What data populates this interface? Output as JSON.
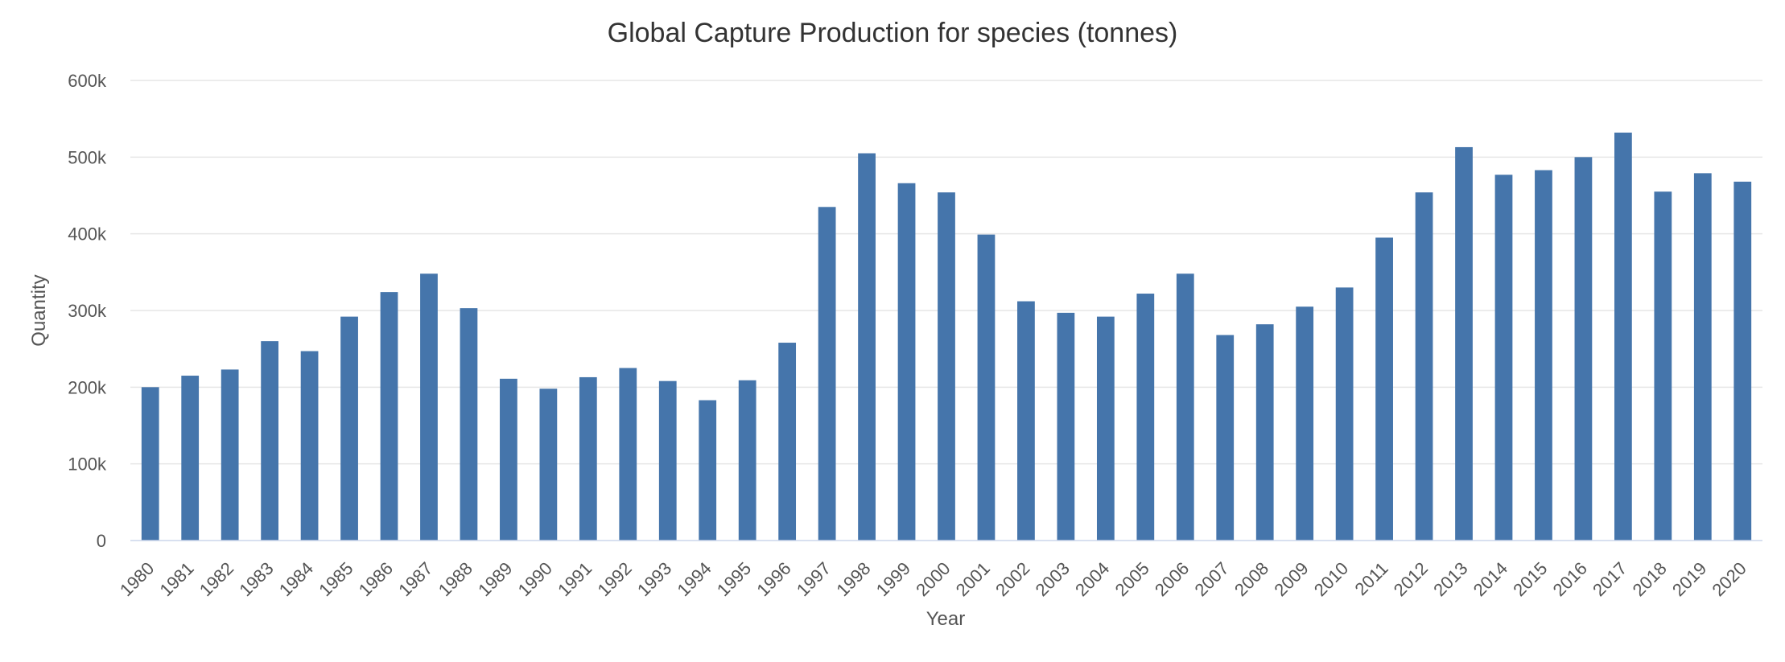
{
  "chart_data": {
    "type": "bar",
    "title": "Global Capture Production for species (tonnes)",
    "xlabel": "Year",
    "ylabel": "Quantity",
    "ylim": [
      0,
      600000
    ],
    "yticks": [
      {
        "value": 0,
        "label": "0"
      },
      {
        "value": 100000,
        "label": "100k"
      },
      {
        "value": 200000,
        "label": "200k"
      },
      {
        "value": 300000,
        "label": "300k"
      },
      {
        "value": 400000,
        "label": "400k"
      },
      {
        "value": 500000,
        "label": "500k"
      },
      {
        "value": 600000,
        "label": "600k"
      }
    ],
    "grid": true,
    "legend": "none",
    "bar_color": "#4575ab",
    "categories": [
      "1980",
      "1981",
      "1982",
      "1983",
      "1984",
      "1985",
      "1986",
      "1987",
      "1988",
      "1989",
      "1990",
      "1991",
      "1992",
      "1993",
      "1994",
      "1995",
      "1996",
      "1997",
      "1998",
      "1999",
      "2000",
      "2001",
      "2002",
      "2003",
      "2004",
      "2005",
      "2006",
      "2007",
      "2008",
      "2009",
      "2010",
      "2011",
      "2012",
      "2013",
      "2014",
      "2015",
      "2016",
      "2017",
      "2018",
      "2019",
      "2020"
    ],
    "values": [
      200000,
      215000,
      223000,
      260000,
      247000,
      292000,
      324000,
      348000,
      303000,
      211000,
      198000,
      213000,
      225000,
      208000,
      183000,
      209000,
      258000,
      435000,
      505000,
      466000,
      454000,
      399000,
      312000,
      297000,
      292000,
      322000,
      348000,
      268000,
      282000,
      305000,
      330000,
      395000,
      454000,
      513000,
      477000,
      483000,
      500000,
      532000,
      455000,
      479000,
      468000
    ]
  }
}
